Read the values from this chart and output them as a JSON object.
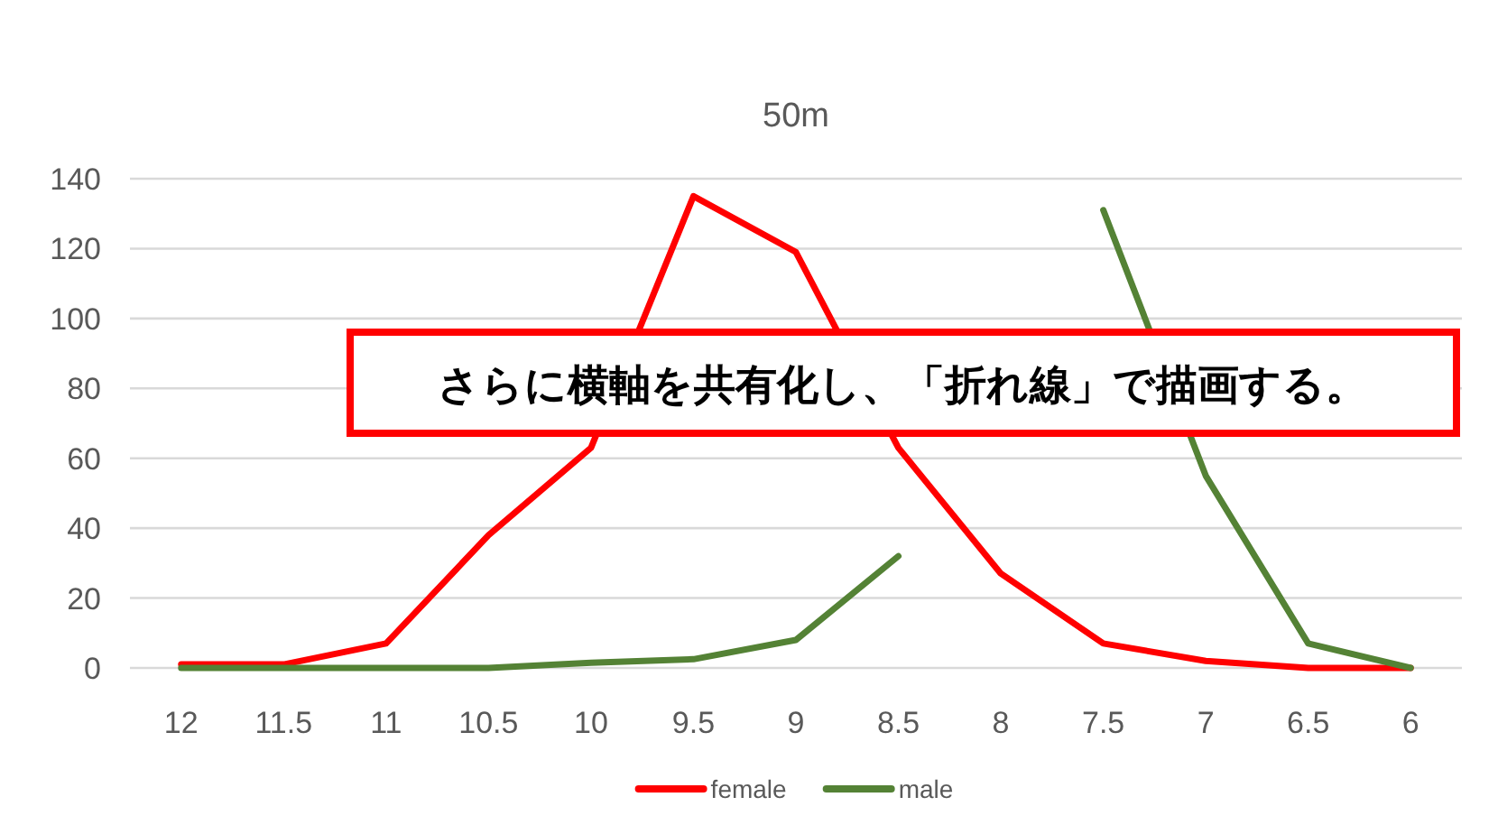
{
  "chart_data": {
    "type": "line",
    "title": "50m",
    "categories": [
      "12",
      "11.5",
      "11",
      "10.5",
      "10",
      "9.5",
      "9",
      "8.5",
      "8",
      "7.5",
      "7",
      "6.5",
      "6"
    ],
    "series": [
      {
        "name": "female",
        "color": "#ff0000",
        "values": [
          1,
          1,
          7,
          38,
          63,
          135,
          119,
          63,
          27,
          7,
          2,
          0,
          0
        ]
      },
      {
        "name": "male",
        "color": "#548235",
        "values": [
          0,
          0,
          0,
          0,
          1.5,
          2.5,
          8,
          32,
          null,
          131,
          55,
          7,
          0
        ]
      }
    ],
    "ylim": [
      0,
      140
    ],
    "yticks": [
      0,
      20,
      40,
      60,
      80,
      100,
      120,
      140
    ],
    "grid": "y",
    "legend": "bottom",
    "marker": "none",
    "line_style": "solid",
    "annotations": [
      "さらに横軸を共有化し、「折れ線」で描画する。"
    ]
  }
}
